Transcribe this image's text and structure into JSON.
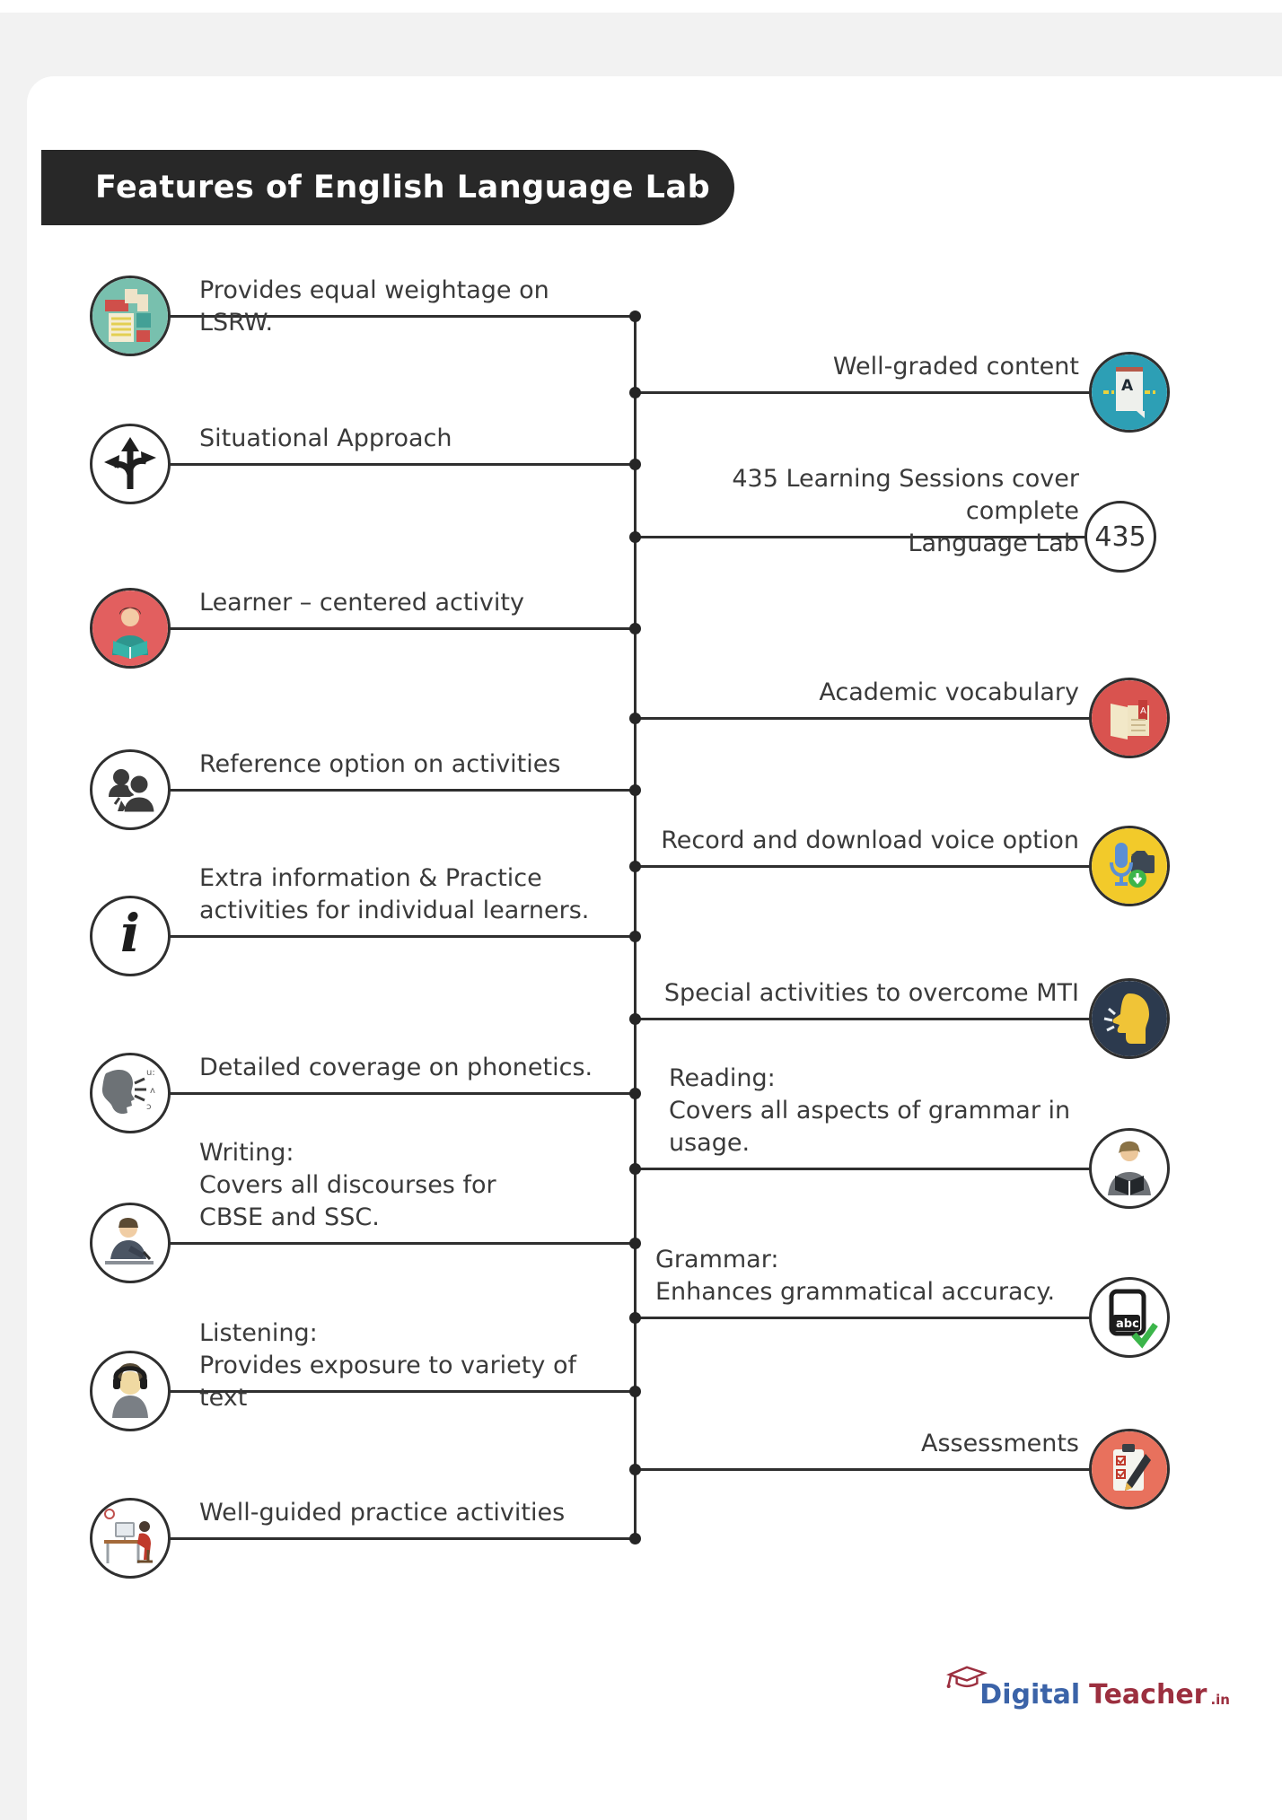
{
  "title": "Features of English Language Lab",
  "brand": {
    "word1": "Digital",
    "word2": "Teacher",
    "suffix": ".in"
  },
  "accent_colors": {
    "bar": "#282828",
    "line": "#2f2f2f",
    "teal": "#2d9fb5",
    "red": "#d9534f",
    "yellow": "#f2ca2a",
    "navy": "#2c3a4e",
    "salmon": "#e8715d",
    "green": "#3bb54a"
  },
  "items": [
    {
      "label": "Provides equal weightage on LSRW.",
      "icon": "lsrw-documents-icon"
    },
    {
      "label": "Well-graded content",
      "icon": "graded-document-icon"
    },
    {
      "label": "Situational Approach",
      "icon": "branching-arrows-icon"
    },
    {
      "label": "435 Learning Sessions cover complete\nLanguage Lab",
      "icon": "session-count-badge",
      "badge": "435"
    },
    {
      "label": "Learner – centered activity",
      "icon": "learner-reading-icon"
    },
    {
      "label": "Academic vocabulary",
      "icon": "vocabulary-book-icon"
    },
    {
      "label": "Reference option on activities",
      "icon": "people-reference-icon"
    },
    {
      "label": "Record and download voice option",
      "icon": "record-voice-icon"
    },
    {
      "label": "Extra information & Practice\nactivities for individual learners.",
      "icon": "info-icon"
    },
    {
      "label": "Special activities to overcome MTI",
      "icon": "mti-speaking-head-icon"
    },
    {
      "label": "Detailed coverage on phonetics.",
      "icon": "phonetics-face-icon"
    },
    {
      "label": "Reading:\nCovers all aspects of grammar in\nusage.",
      "icon": "reading-person-icon"
    },
    {
      "label": "Writing:\nCovers all discourses for\nCBSE and SSC.",
      "icon": "writing-person-icon"
    },
    {
      "label": "Grammar:\nEnhances grammatical accuracy.",
      "icon": "grammar-abc-icon"
    },
    {
      "label": "Listening:\nProvides exposure to variety of text",
      "icon": "listening-person-icon"
    },
    {
      "label": "Assessments",
      "icon": "assessments-clipboard-icon"
    },
    {
      "label": "Well-guided practice activities",
      "icon": "practice-desk-icon"
    }
  ]
}
